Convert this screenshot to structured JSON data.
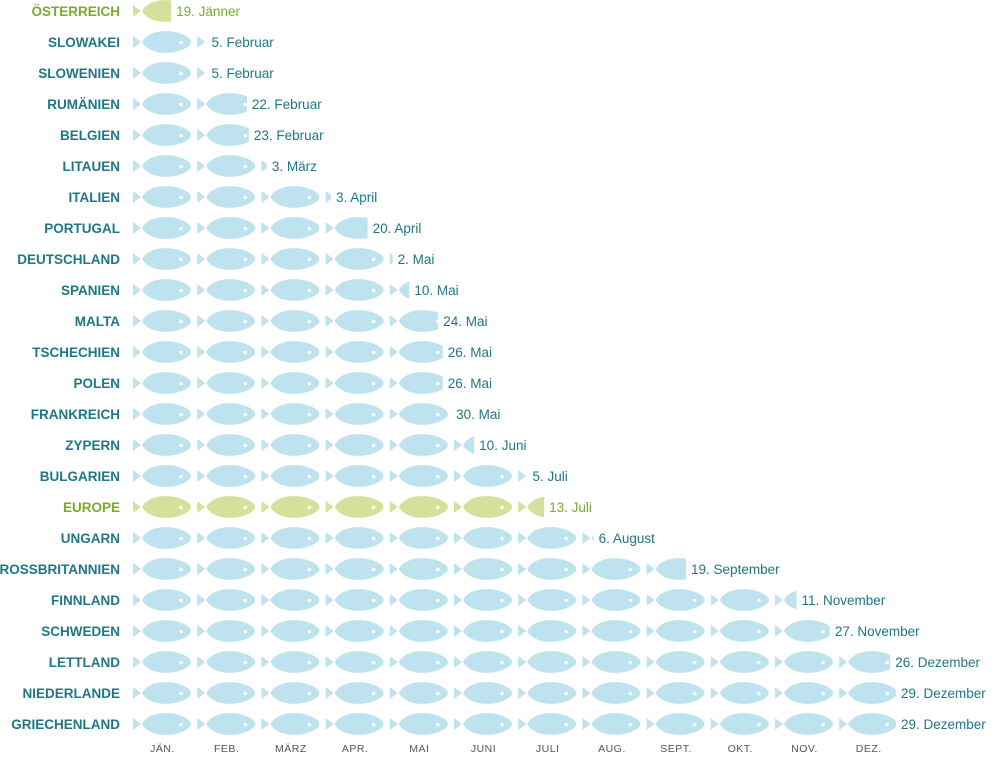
{
  "colors": {
    "fish": "#bfe3ee",
    "fish_highlight": "#d5e19b",
    "label": "#1f7784",
    "label_highlight": "#7ea92f",
    "month": "#555555",
    "eye": "#ffffff"
  },
  "chart_data": {
    "type": "pictogram",
    "unit": "month",
    "months": [
      "JÄN.",
      "FEB.",
      "MÄRZ",
      "APR.",
      "MAI",
      "JUNI",
      "JULI",
      "AUG.",
      "SEPT.",
      "OKT.",
      "NOV.",
      "DEZ."
    ],
    "rows": [
      {
        "country": "ÖSTERREICH",
        "date": "19. Jänner",
        "months": 0.61,
        "highlight": true
      },
      {
        "country": "SLOWAKEI",
        "date": "5. Februar",
        "months": 1.16,
        "highlight": false
      },
      {
        "country": "SLOWENIEN",
        "date": "5. Februar",
        "months": 1.16,
        "highlight": false
      },
      {
        "country": "RUMÄNIEN",
        "date": "22. Februar",
        "months": 1.79,
        "highlight": false
      },
      {
        "country": "BELGIEN",
        "date": "23. Februar",
        "months": 1.82,
        "highlight": false
      },
      {
        "country": "LITAUEN",
        "date": "3. März",
        "months": 2.1,
        "highlight": false
      },
      {
        "country": "ITALIEN",
        "date": "3. April",
        "months": 3.1,
        "highlight": false
      },
      {
        "country": "PORTUGAL",
        "date": "20. April",
        "months": 3.67,
        "highlight": false
      },
      {
        "country": "DEUTSCHLAND",
        "date": "2. Mai",
        "months": 4.06,
        "highlight": false
      },
      {
        "country": "SPANIEN",
        "date": "10. Mai",
        "months": 4.32,
        "highlight": false
      },
      {
        "country": "MALTA",
        "date": "24. Mai",
        "months": 4.77,
        "highlight": false
      },
      {
        "country": "TSCHECHIEN",
        "date": "26. Mai",
        "months": 4.84,
        "highlight": false
      },
      {
        "country": "POLEN",
        "date": "26. Mai",
        "months": 4.84,
        "highlight": false
      },
      {
        "country": "FRANKREICH",
        "date": "30. Mai",
        "months": 4.97,
        "highlight": false
      },
      {
        "country": "ZYPERN",
        "date": "10. Juni",
        "months": 5.33,
        "highlight": false
      },
      {
        "country": "BULGARIEN",
        "date": "5. Juli",
        "months": 6.16,
        "highlight": false
      },
      {
        "country": "EUROPE",
        "date": "13. Juli",
        "months": 6.42,
        "highlight": true
      },
      {
        "country": "UNGARN",
        "date": "6. August",
        "months": 7.19,
        "highlight": false
      },
      {
        "country": "GROSSBRITANNIEN",
        "date": "19. September",
        "months": 8.63,
        "highlight": false
      },
      {
        "country": "FINNLAND",
        "date": "11. November",
        "months": 10.35,
        "highlight": false
      },
      {
        "country": "SCHWEDEN",
        "date": "27. November",
        "months": 10.87,
        "highlight": false
      },
      {
        "country": "LETTLAND",
        "date": "26. Dezember",
        "months": 11.81,
        "highlight": false
      },
      {
        "country": "NIEDERLANDE",
        "date": "29. Dezember",
        "months": 11.9,
        "highlight": false
      },
      {
        "country": "GRIECHENLAND",
        "date": "29. Dezember",
        "months": 11.9,
        "highlight": false
      }
    ]
  }
}
